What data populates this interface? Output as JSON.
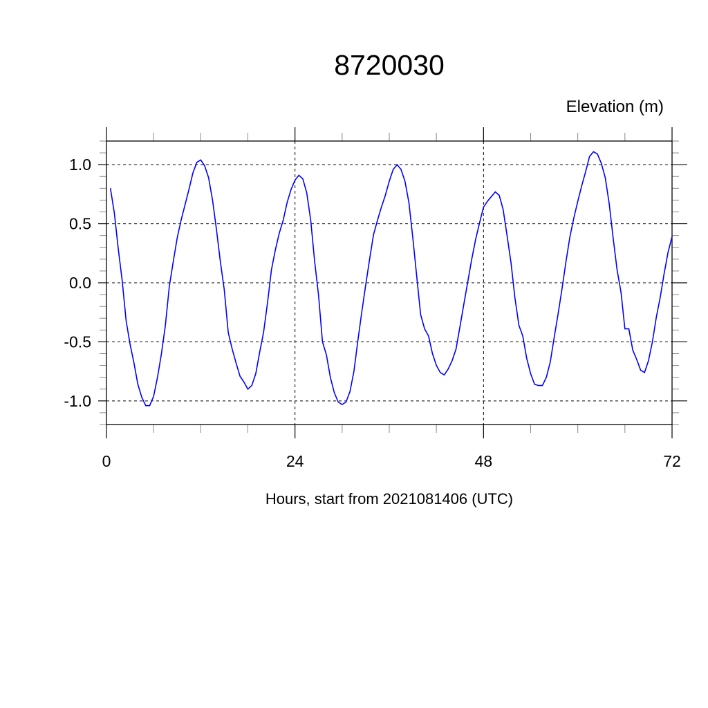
{
  "chart_data": {
    "type": "line",
    "title": "8720030",
    "ylabel": "Elevation (m)",
    "xlabel": "Hours, start from 2021081406 (UTC)",
    "xlim": [
      0,
      72
    ],
    "ylim": [
      -1.2,
      1.2
    ],
    "xticks": [
      0,
      24,
      48,
      72
    ],
    "xtick_labels": [
      "0",
      "24",
      "48",
      "72"
    ],
    "x_minor_step": 6,
    "yticks": [
      -1.0,
      -0.5,
      0.0,
      0.5,
      1.0
    ],
    "ytick_labels": [
      "-1.0",
      "-0.5",
      "0.0",
      "0.5",
      "1.0"
    ],
    "y_minor_step": 0.1,
    "grid": "dashed at major ticks",
    "line_color": "#0000ff",
    "series": [
      {
        "points": [
          [
            0.5,
            0.8
          ],
          [
            1.0,
            0.59
          ],
          [
            1.5,
            0.29
          ],
          [
            2.0,
            0.02
          ],
          [
            2.5,
            -0.32
          ],
          [
            3.0,
            -0.52
          ],
          [
            3.5,
            -0.68
          ],
          [
            4.0,
            -0.86
          ],
          [
            4.5,
            -0.97
          ],
          [
            5.0,
            -1.04
          ],
          [
            5.5,
            -1.04
          ],
          [
            6.0,
            -0.96
          ],
          [
            6.5,
            -0.8
          ],
          [
            7.0,
            -0.6
          ],
          [
            7.5,
            -0.36
          ],
          [
            8.0,
            -0.03
          ],
          [
            8.5,
            0.18
          ],
          [
            9.0,
            0.38
          ],
          [
            9.5,
            0.53
          ],
          [
            10.0,
            0.66
          ],
          [
            10.5,
            0.79
          ],
          [
            11.0,
            0.93
          ],
          [
            11.5,
            1.02
          ],
          [
            12.0,
            1.04
          ],
          [
            12.5,
            0.99
          ],
          [
            13.0,
            0.89
          ],
          [
            13.5,
            0.7
          ],
          [
            14.0,
            0.45
          ],
          [
            14.5,
            0.18
          ],
          [
            15.0,
            -0.06
          ],
          [
            15.5,
            -0.42
          ],
          [
            16.0,
            -0.56
          ],
          [
            16.5,
            -0.68
          ],
          [
            17.0,
            -0.79
          ],
          [
            17.5,
            -0.84
          ],
          [
            18.0,
            -0.9
          ],
          [
            18.5,
            -0.87
          ],
          [
            19.0,
            -0.77
          ],
          [
            19.5,
            -0.59
          ],
          [
            20.0,
            -0.42
          ],
          [
            20.5,
            -0.17
          ],
          [
            21.0,
            0.11
          ],
          [
            21.5,
            0.28
          ],
          [
            22.0,
            0.42
          ],
          [
            22.5,
            0.53
          ],
          [
            23.0,
            0.68
          ],
          [
            23.5,
            0.79
          ],
          [
            24.0,
            0.87
          ],
          [
            24.5,
            0.91
          ],
          [
            25.0,
            0.88
          ],
          [
            25.5,
            0.76
          ],
          [
            26.0,
            0.53
          ],
          [
            26.5,
            0.18
          ],
          [
            27.0,
            -0.11
          ],
          [
            27.5,
            -0.5
          ],
          [
            28.0,
            -0.61
          ],
          [
            28.5,
            -0.8
          ],
          [
            29.0,
            -0.93
          ],
          [
            29.5,
            -1.01
          ],
          [
            30.0,
            -1.03
          ],
          [
            30.5,
            -1.01
          ],
          [
            31.0,
            -0.92
          ],
          [
            31.5,
            -0.75
          ],
          [
            32.0,
            -0.49
          ],
          [
            32.5,
            -0.25
          ],
          [
            33.0,
            -0.02
          ],
          [
            33.5,
            0.2
          ],
          [
            34.0,
            0.41
          ],
          [
            34.5,
            0.53
          ],
          [
            35.0,
            0.64
          ],
          [
            35.5,
            0.74
          ],
          [
            36.0,
            0.86
          ],
          [
            36.5,
            0.96
          ],
          [
            37.0,
            1.0
          ],
          [
            37.5,
            0.96
          ],
          [
            38.0,
            0.86
          ],
          [
            38.5,
            0.68
          ],
          [
            39.0,
            0.38
          ],
          [
            39.5,
            0.05
          ],
          [
            40.0,
            -0.27
          ],
          [
            40.5,
            -0.39
          ],
          [
            41.0,
            -0.45
          ],
          [
            41.5,
            -0.6
          ],
          [
            42.0,
            -0.7
          ],
          [
            42.5,
            -0.76
          ],
          [
            43.0,
            -0.78
          ],
          [
            43.5,
            -0.73
          ],
          [
            44.0,
            -0.66
          ],
          [
            44.5,
            -0.56
          ],
          [
            45.0,
            -0.37
          ],
          [
            45.5,
            -0.18
          ],
          [
            46.0,
            0.01
          ],
          [
            46.5,
            0.2
          ],
          [
            47.0,
            0.37
          ],
          [
            47.5,
            0.51
          ],
          [
            48.0,
            0.64
          ],
          [
            48.5,
            0.69
          ],
          [
            49.0,
            0.73
          ],
          [
            49.5,
            0.77
          ],
          [
            50.0,
            0.74
          ],
          [
            50.5,
            0.62
          ],
          [
            51.0,
            0.4
          ],
          [
            51.5,
            0.17
          ],
          [
            52.0,
            -0.13
          ],
          [
            52.5,
            -0.36
          ],
          [
            53.0,
            -0.45
          ],
          [
            53.5,
            -0.64
          ],
          [
            54.0,
            -0.77
          ],
          [
            54.5,
            -0.86
          ],
          [
            55.0,
            -0.87
          ],
          [
            55.5,
            -0.87
          ],
          [
            56.0,
            -0.8
          ],
          [
            56.5,
            -0.67
          ],
          [
            57.0,
            -0.46
          ],
          [
            57.5,
            -0.26
          ],
          [
            58.0,
            -0.05
          ],
          [
            58.5,
            0.18
          ],
          [
            59.0,
            0.39
          ],
          [
            59.5,
            0.55
          ],
          [
            60.0,
            0.69
          ],
          [
            60.5,
            0.82
          ],
          [
            61.0,
            0.94
          ],
          [
            61.5,
            1.07
          ],
          [
            62.0,
            1.11
          ],
          [
            62.5,
            1.09
          ],
          [
            63.0,
            1.01
          ],
          [
            63.5,
            0.89
          ],
          [
            64.0,
            0.67
          ],
          [
            64.5,
            0.38
          ],
          [
            65.0,
            0.11
          ],
          [
            65.5,
            -0.08
          ],
          [
            66.0,
            -0.39
          ],
          [
            66.5,
            -0.39
          ],
          [
            67.0,
            -0.57
          ],
          [
            67.5,
            -0.65
          ],
          [
            68.0,
            -0.74
          ],
          [
            68.5,
            -0.76
          ],
          [
            69.0,
            -0.66
          ],
          [
            69.5,
            -0.5
          ],
          [
            70.0,
            -0.29
          ],
          [
            70.5,
            -0.12
          ],
          [
            71.0,
            0.08
          ],
          [
            71.5,
            0.26
          ],
          [
            72.0,
            0.39
          ]
        ]
      }
    ]
  }
}
